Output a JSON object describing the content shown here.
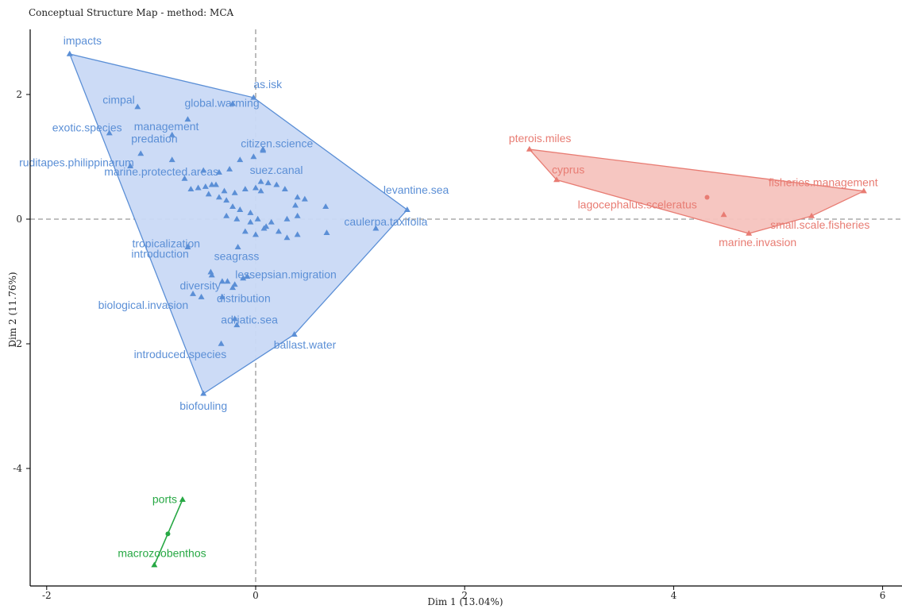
{
  "chart_data": {
    "type": "scatter",
    "title": "Conceptual Structure Map - method: MCA",
    "xlabel": "Dim 1 (13.04%)",
    "ylabel": "Dim 2 (11.76%)",
    "xlim": [
      -2.15,
      6.2
    ],
    "ylim": [
      -5.9,
      3.0
    ],
    "xticks": [
      -2,
      0,
      2,
      4,
      6
    ],
    "yticks": [
      2,
      0,
      -2,
      -4
    ],
    "ytick_labels": [
      "2",
      "0",
      "-2",
      "-4"
    ],
    "reference_lines": {
      "x": 0,
      "y": 0,
      "style": "dashed"
    },
    "colors": {
      "cluster1": "#5b8fd6",
      "cluster2": "#e87c73",
      "cluster3": "#27a844"
    },
    "clusters": [
      {
        "id": 1,
        "color": "#5b8fd6",
        "fill": "#c9d9f5",
        "hull": [
          [
            -1.78,
            2.65
          ],
          [
            -0.02,
            1.95
          ],
          [
            1.45,
            0.15
          ],
          [
            0.37,
            -1.85
          ],
          [
            -0.5,
            -2.8
          ]
        ],
        "labeled_points": [
          {
            "label": "impacts",
            "x": -1.78,
            "y": 2.65
          },
          {
            "label": "as.isk",
            "x": -0.02,
            "y": 1.95
          },
          {
            "label": "cimpal",
            "x": -1.13,
            "y": 1.8
          },
          {
            "label": "global.warming",
            "x": -0.65,
            "y": 1.6
          },
          {
            "label": "exotic.species",
            "x": -1.4,
            "y": 1.38
          },
          {
            "label": "management",
            "x": -0.8,
            "y": 1.35
          },
          {
            "label": "predation",
            "x": -1.1,
            "y": 1.05
          },
          {
            "label": "citizen.science",
            "x": 0.07,
            "y": 1.1
          },
          {
            "label": "ruditapes.philippinarum",
            "x": -1.2,
            "y": 0.85
          },
          {
            "label": "marine.protected.areas",
            "x": -0.5,
            "y": 0.78
          },
          {
            "label": "suez.canal",
            "x": 0.05,
            "y": 0.6
          },
          {
            "label": "levantine.sea",
            "x": 1.45,
            "y": 0.15
          },
          {
            "label": "caulerpa.taxifolia",
            "x": 1.15,
            "y": -0.15
          },
          {
            "label": "tropicalization",
            "x": -0.65,
            "y": -0.45
          },
          {
            "label": "introduction",
            "x": -0.43,
            "y": -0.85
          },
          {
            "label": "seagrass",
            "x": -0.17,
            "y": -0.45
          },
          {
            "label": "lessepsian.migration",
            "x": -0.12,
            "y": -0.95
          },
          {
            "label": "diversity",
            "x": -0.27,
            "y": -1.0
          },
          {
            "label": "distribution",
            "x": -0.22,
            "y": -1.1
          },
          {
            "label": "biological.invasion",
            "x": -0.52,
            "y": -1.25
          },
          {
            "label": "adriatic.sea",
            "x": -0.18,
            "y": -1.7
          },
          {
            "label": "ballast.water",
            "x": 0.37,
            "y": -1.85
          },
          {
            "label": "introduced.species",
            "x": -0.33,
            "y": -2.0
          },
          {
            "label": "biofouling",
            "x": -0.5,
            "y": -2.8
          }
        ],
        "points": [
          [
            -0.22,
            1.85
          ],
          [
            0.07,
            1.12
          ],
          [
            -0.02,
            1.0
          ],
          [
            -0.15,
            0.95
          ],
          [
            -0.25,
            0.8
          ],
          [
            -0.35,
            0.75
          ],
          [
            -0.42,
            0.55
          ],
          [
            -0.55,
            0.5
          ],
          [
            -0.62,
            0.48
          ],
          [
            -0.48,
            0.52
          ],
          [
            -0.38,
            0.55
          ],
          [
            -0.3,
            0.45
          ],
          [
            -0.2,
            0.42
          ],
          [
            -0.1,
            0.48
          ],
          [
            0.0,
            0.5
          ],
          [
            -0.45,
            0.4
          ],
          [
            -0.35,
            0.35
          ],
          [
            -0.28,
            0.3
          ],
          [
            -0.22,
            0.2
          ],
          [
            -0.15,
            0.15
          ],
          [
            -0.05,
            0.1
          ],
          [
            -0.28,
            0.05
          ],
          [
            -0.18,
            0.0
          ],
          [
            0.02,
            0.0
          ],
          [
            0.1,
            -0.12
          ],
          [
            -0.05,
            -0.05
          ],
          [
            -0.1,
            -0.2
          ],
          [
            0.0,
            -0.25
          ],
          [
            0.08,
            -0.15
          ],
          [
            0.15,
            -0.05
          ],
          [
            0.22,
            -0.2
          ],
          [
            0.3,
            -0.3
          ],
          [
            0.4,
            -0.25
          ],
          [
            0.3,
            0.0
          ],
          [
            0.4,
            0.05
          ],
          [
            0.2,
            0.55
          ],
          [
            0.12,
            0.58
          ],
          [
            0.05,
            0.45
          ],
          [
            0.28,
            0.48
          ],
          [
            0.4,
            0.35
          ],
          [
            0.47,
            0.32
          ],
          [
            0.38,
            0.22
          ],
          [
            0.67,
            0.2
          ],
          [
            0.68,
            -0.22
          ],
          [
            -0.42,
            -0.9
          ],
          [
            -0.32,
            -1.25
          ],
          [
            -0.2,
            -1.05
          ],
          [
            -0.32,
            -1.0
          ],
          [
            -0.6,
            -1.2
          ],
          [
            -0.08,
            -0.92
          ],
          [
            -0.2,
            -1.6
          ],
          [
            -0.8,
            0.95
          ],
          [
            -0.68,
            0.65
          ]
        ]
      },
      {
        "id": 2,
        "color": "#e87c73",
        "fill": "#f6c3be",
        "hull": [
          [
            2.62,
            1.12
          ],
          [
            5.82,
            0.45
          ],
          [
            5.32,
            0.05
          ],
          [
            4.72,
            -0.23
          ],
          [
            2.88,
            0.63
          ]
        ],
        "labeled_points": [
          {
            "label": "pterois.miles",
            "x": 2.62,
            "y": 1.12
          },
          {
            "label": "cyprus",
            "x": 2.88,
            "y": 0.63
          },
          {
            "label": "fisheries.management",
            "x": 5.82,
            "y": 0.45
          },
          {
            "label": "lagocephalus.sceleratus",
            "x": 4.48,
            "y": 0.07
          },
          {
            "label": "small.scale.fisheries",
            "x": 5.32,
            "y": 0.05
          },
          {
            "label": "marine.invasion",
            "x": 4.72,
            "y": -0.23
          }
        ],
        "centroid": [
          4.32,
          0.35
        ]
      },
      {
        "id": 3,
        "color": "#27a844",
        "labeled_points": [
          {
            "label": "ports",
            "x": -0.7,
            "y": -4.5
          },
          {
            "label": "macrozoobenthos",
            "x": -0.97,
            "y": -5.55
          }
        ],
        "centroid": [
          -0.84,
          -5.05
        ]
      }
    ]
  }
}
